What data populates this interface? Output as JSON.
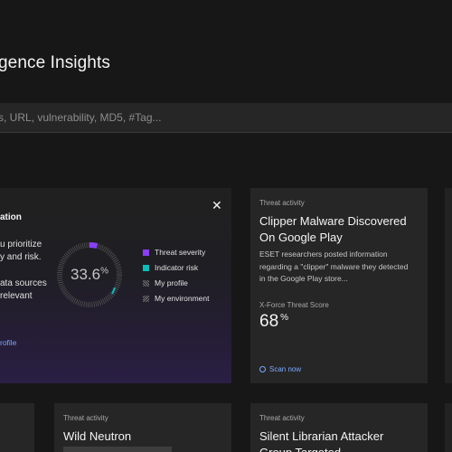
{
  "page": {
    "title": "gence Insights"
  },
  "search": {
    "placeholder": "s, URL, vulnerability, MD5, #Tag..."
  },
  "intro_card": {
    "heading": "ation",
    "lines": [
      "u prioritize",
      "y and risk.",
      "ata sources",
      "relevant"
    ],
    "link": "rofile",
    "gauge": {
      "value": "33.6",
      "unit": "%",
      "fraction": 0.336
    },
    "legend": [
      {
        "label": "Threat severity",
        "color": "#8a3ffc"
      },
      {
        "label": "Indicator risk",
        "color": "#08bdba"
      },
      {
        "label": "My profile",
        "color": "#6f6f6f"
      },
      {
        "label": "My environment",
        "color": "#6f6f6f"
      }
    ]
  },
  "cards": [
    {
      "category": "Threat activity",
      "title": "Clipper Malware Discovered On Google Play",
      "description": "ESET researchers posted information regarding a \"clipper\" malware they detected in the Google Play store...",
      "score_label": "X-Force Threat Score",
      "score": "68",
      "score_unit": "%",
      "action": "Scan now"
    },
    {
      "category": "Threat activity",
      "title": "Wild Neutron"
    },
    {
      "category": "Threat activity",
      "title": "Silent Librarian Attacker Group Targeted"
    }
  ],
  "colors": {
    "accent": "#78a9ff",
    "purple": "#8a3ffc",
    "teal": "#08bdba",
    "background": "#171717",
    "card": "#262626"
  }
}
